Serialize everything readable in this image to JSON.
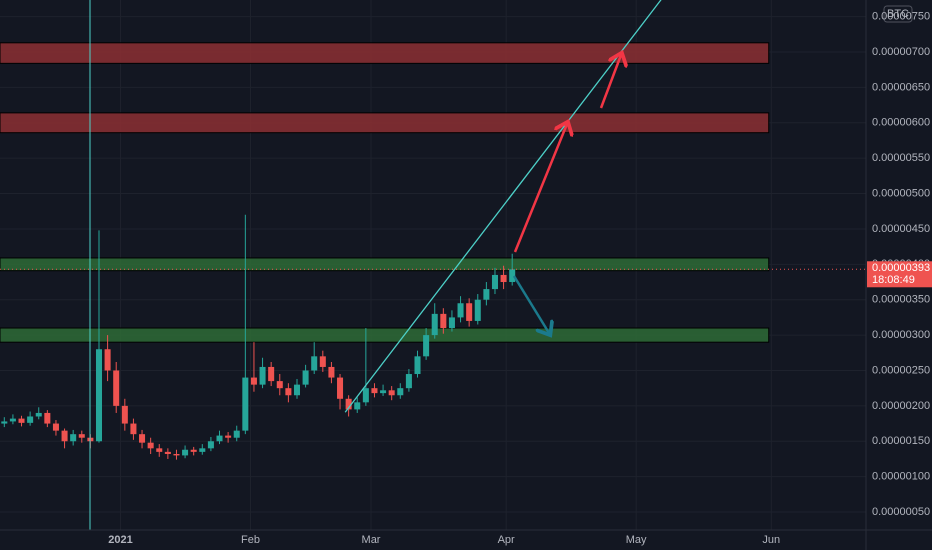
{
  "chart_data": {
    "type": "candlestick",
    "currency": "BTC",
    "up_color": "#26a69a",
    "down_color": "#ef5350",
    "open": [
      1.75e-06,
      1.78e-06,
      1.82e-06,
      1.76e-06,
      1.85e-06,
      1.9e-06,
      1.75e-06,
      1.65e-06,
      1.5e-06,
      1.6e-06,
      1.55e-06,
      1.5e-06,
      2.8e-06,
      2.5e-06,
      2e-06,
      1.75e-06,
      1.6e-06,
      1.48e-06,
      1.4e-06,
      1.35e-06,
      1.32e-06,
      1.3e-06,
      1.38e-06,
      1.35e-06,
      1.4e-06,
      1.5e-06,
      1.58e-06,
      1.55e-06,
      1.65e-06,
      2.4e-06,
      2.3e-06,
      2.55e-06,
      2.35e-06,
      2.25e-06,
      2.15e-06,
      2.3e-06,
      2.5e-06,
      2.7e-06,
      2.55e-06,
      2.4e-06,
      2.1e-06,
      1.95e-06,
      2.05e-06,
      2.25e-06,
      2.18e-06,
      2.22e-06,
      2.15e-06,
      2.25e-06,
      2.45e-06,
      2.7e-06,
      3e-06,
      3.3e-06,
      3.1e-06,
      3.25e-06,
      3.45e-06,
      3.2e-06,
      3.5e-06,
      3.65e-06,
      3.85e-06,
      3.75e-06
    ],
    "high": [
      1.84e-06,
      1.88e-06,
      1.86e-06,
      1.92e-06,
      1.98e-06,
      1.94e-06,
      1.8e-06,
      1.68e-06,
      1.66e-06,
      1.65e-06,
      1.6e-06,
      4.48e-06,
      3e-06,
      2.62e-06,
      2.1e-06,
      1.82e-06,
      1.66e-06,
      1.55e-06,
      1.46e-06,
      1.4e-06,
      1.38e-06,
      1.44e-06,
      1.42e-06,
      1.46e-06,
      1.56e-06,
      1.65e-06,
      1.63e-06,
      1.72e-06,
      4.7e-06,
      2.9e-06,
      2.68e-06,
      2.62e-06,
      2.45e-06,
      2.32e-06,
      2.38e-06,
      2.58e-06,
      2.9e-06,
      2.78e-06,
      2.62e-06,
      2.45e-06,
      2.15e-06,
      2.12e-06,
      3.1e-06,
      2.32e-06,
      2.3e-06,
      2.28e-06,
      2.32e-06,
      2.52e-06,
      2.78e-06,
      3.1e-06,
      3.45e-06,
      3.38e-06,
      3.35e-06,
      3.55e-06,
      3.52e-06,
      3.58e-06,
      3.75e-06,
      3.95e-06,
      3.98e-06,
      4.15e-06
    ],
    "low": [
      1.7e-06,
      1.74e-06,
      1.71e-06,
      1.72e-06,
      1.81e-06,
      1.7e-06,
      1.58e-06,
      1.4e-06,
      1.44e-06,
      1.48e-06,
      1.4e-06,
      1.48e-06,
      2.35e-06,
      1.9e-06,
      1.65e-06,
      1.52e-06,
      1.4e-06,
      1.32e-06,
      1.28e-06,
      1.25e-06,
      1.24e-06,
      1.26e-06,
      1.3e-06,
      1.31e-06,
      1.36e-06,
      1.46e-06,
      1.48e-06,
      1.5e-06,
      1.6e-06,
      2.2e-06,
      2.25e-06,
      2.28e-06,
      2.15e-06,
      2.05e-06,
      2.1e-06,
      2.26e-06,
      2.45e-06,
      2.48e-06,
      2.32e-06,
      1.95e-06,
      1.85e-06,
      1.9e-06,
      2e-06,
      2.12e-06,
      2.14e-06,
      2.08e-06,
      2.1e-06,
      2.2e-06,
      2.4e-06,
      2.65e-06,
      2.95e-06,
      3.02e-06,
      3.05e-06,
      3.18e-06,
      3.12e-06,
      3.15e-06,
      3.42e-06,
      3.58e-06,
      3.65e-06,
      3.7e-06
    ],
    "close": [
      1.78e-06,
      1.82e-06,
      1.76e-06,
      1.85e-06,
      1.9e-06,
      1.75e-06,
      1.65e-06,
      1.5e-06,
      1.6e-06,
      1.55e-06,
      1.5e-06,
      2.8e-06,
      2.5e-06,
      2e-06,
      1.75e-06,
      1.6e-06,
      1.48e-06,
      1.4e-06,
      1.35e-06,
      1.32e-06,
      1.3e-06,
      1.38e-06,
      1.35e-06,
      1.4e-06,
      1.5e-06,
      1.58e-06,
      1.55e-06,
      1.65e-06,
      2.4e-06,
      2.3e-06,
      2.55e-06,
      2.35e-06,
      2.25e-06,
      2.15e-06,
      2.3e-06,
      2.5e-06,
      2.7e-06,
      2.55e-06,
      2.4e-06,
      2.1e-06,
      1.95e-06,
      2.05e-06,
      2.25e-06,
      2.18e-06,
      2.22e-06,
      2.15e-06,
      2.25e-06,
      2.45e-06,
      2.7e-06,
      3e-06,
      3.3e-06,
      3.1e-06,
      3.25e-06,
      3.45e-06,
      3.2e-06,
      3.5e-06,
      3.65e-06,
      3.85e-06,
      3.75e-06,
      3.93e-06
    ],
    "xlim": [
      -0.5,
      100.1
    ],
    "xticks": [
      {
        "value": 13.5,
        "label": "2021"
      },
      {
        "value": 28.6,
        "label": "Feb"
      },
      {
        "value": 42.6,
        "label": "Mar"
      },
      {
        "value": 58.3,
        "label": "Apr"
      },
      {
        "value": 73.4,
        "label": "May"
      },
      {
        "value": 89.1,
        "label": "Jun"
      }
    ],
    "ylim": [
      2.46e-07,
      7.735e-06
    ],
    "yticks": [
      {
        "value": 5e-07,
        "label": "0.00000050"
      },
      {
        "value": 1e-06,
        "label": "0.00000100"
      },
      {
        "value": 1.5e-06,
        "label": "0.00000150"
      },
      {
        "value": 2e-06,
        "label": "0.00000200"
      },
      {
        "value": 2.5e-06,
        "label": "0.00000250"
      },
      {
        "value": 3e-06,
        "label": "0.00000300"
      },
      {
        "value": 3.5e-06,
        "label": "0.00000350"
      },
      {
        "value": 4e-06,
        "label": "0.00000400"
      },
      {
        "value": 4.5e-06,
        "label": "0.00000450"
      },
      {
        "value": 5e-06,
        "label": "0.00000500"
      },
      {
        "value": 5.5e-06,
        "label": "0.00000550"
      },
      {
        "value": 6e-06,
        "label": "0.00000600"
      },
      {
        "value": 6.5e-06,
        "label": "0.00000650"
      },
      {
        "value": 7e-06,
        "label": "0.00000700"
      },
      {
        "value": 7.5e-06,
        "label": "0.00000750"
      }
    ],
    "grid": true,
    "zones": [
      {
        "color": "#8c2f33",
        "x": [
          -0.5,
          88.8
        ],
        "range": [
          6.84e-06,
          7.13e-06
        ]
      },
      {
        "color": "#8c2f33",
        "x": [
          -0.5,
          88.8
        ],
        "range": [
          5.86e-06,
          6.14e-06
        ]
      },
      {
        "color": "#2e6b36",
        "x": [
          -0.5,
          88.8
        ],
        "range": [
          3.91e-06,
          4.09e-06
        ]
      },
      {
        "color": "#2e6b36",
        "x": [
          -0.5,
          88.8
        ],
        "range": [
          2.9e-06,
          3.1e-06
        ]
      }
    ],
    "trendline": {
      "color": "#4dd0c8",
      "x": [
        39.6,
        76.3
      ],
      "values": [
        1.91e-06,
        7.74e-06
      ]
    },
    "last_price": {
      "value": 3.93e-06,
      "label": "0.00000393"
    },
    "countdown": "18:08:49"
  }
}
